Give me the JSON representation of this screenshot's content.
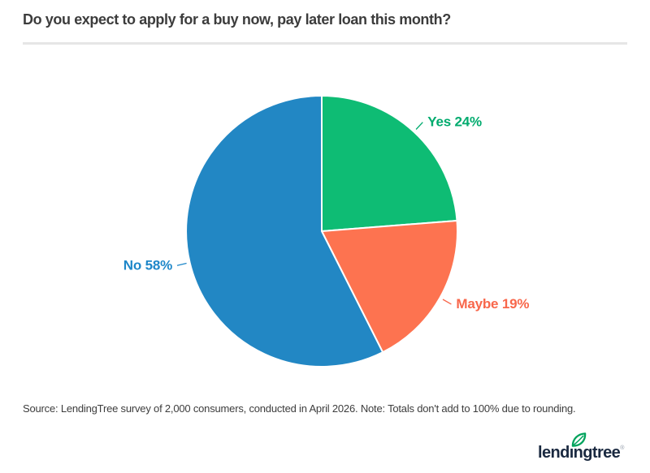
{
  "chart_data": {
    "type": "pie",
    "title": "Do you expect to apply for a buy now, pay later loan this month?",
    "start_angle_deg": 0,
    "direction": "clockwise",
    "slices": [
      {
        "label": "Yes",
        "value": 24,
        "display": "Yes 24%",
        "color": "#0ebc74",
        "label_color": "#00ab6e"
      },
      {
        "label": "Maybe",
        "value": 19,
        "display": "Maybe 19%",
        "color": "#fd7350",
        "label_color": "#f8674b"
      },
      {
        "label": "No",
        "value": 58,
        "display": "No 58%",
        "color": "#2287c4",
        "label_color": "#1e87c9"
      }
    ]
  },
  "footer": {
    "source": "Source: LendingTree survey of 2,000 consumers, conducted in April 2026. Note: Totals don't add to 100% due to rounding.",
    "brand": "lendingtree",
    "trademark": "®",
    "leaf_color": "#00a35c"
  }
}
